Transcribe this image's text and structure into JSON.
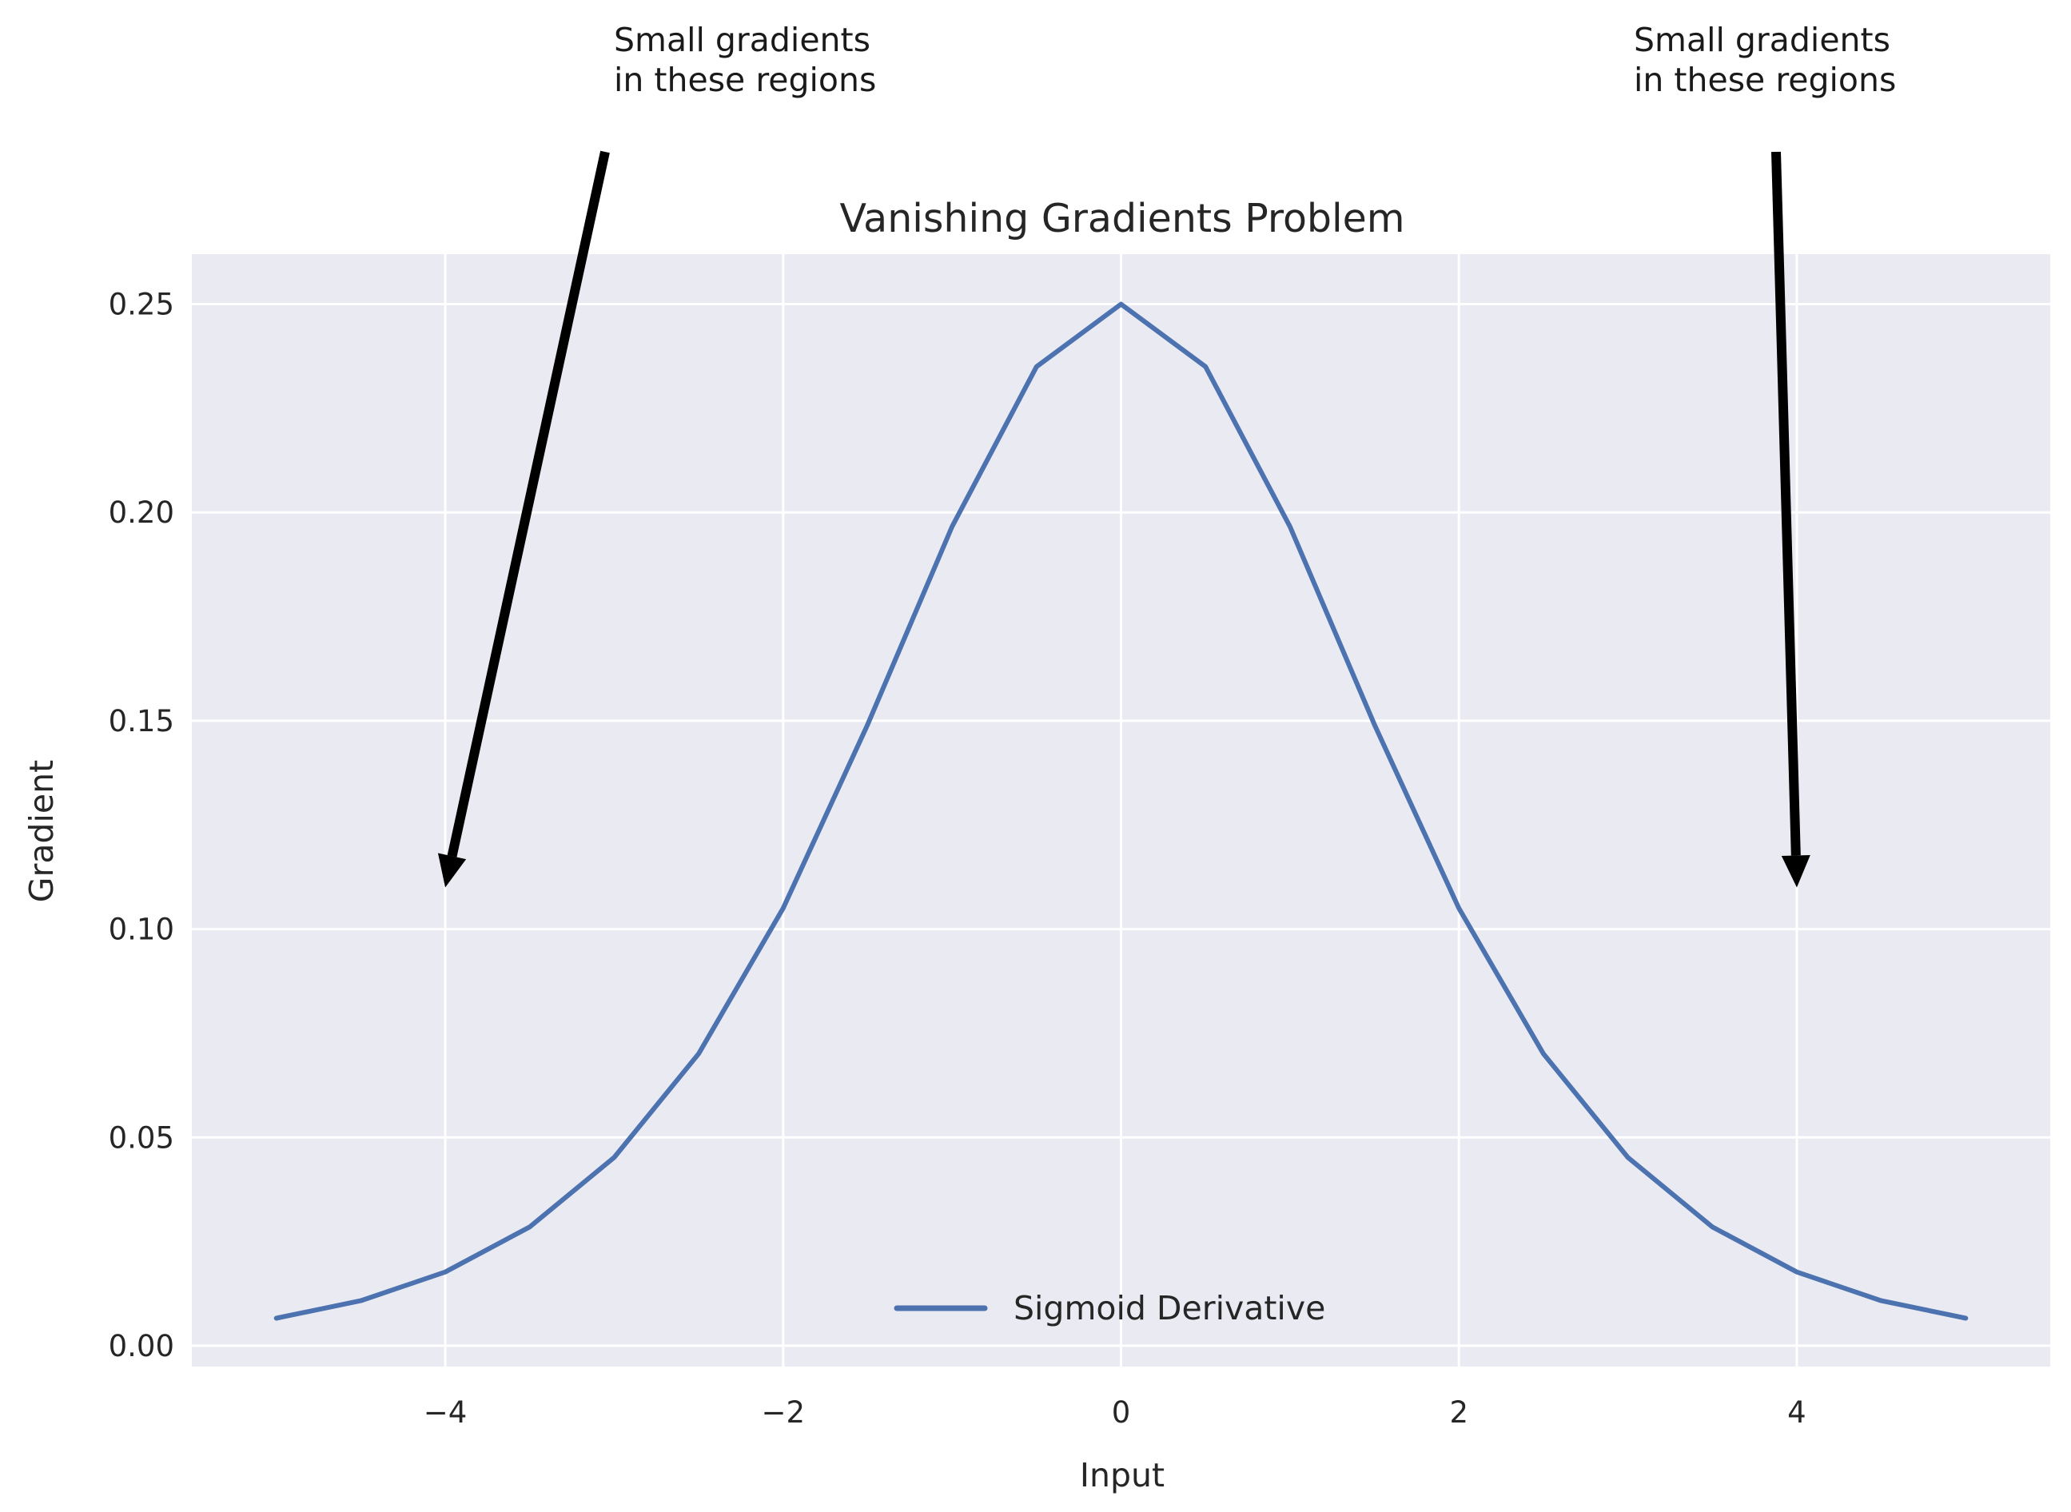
{
  "chart_data": {
    "type": "line",
    "title": "Vanishing Gradients Problem",
    "xlabel": "Input",
    "ylabel": "Gradient",
    "xlim": [
      -5.5,
      5.5
    ],
    "ylim": [
      -0.005,
      0.262
    ],
    "xticks": [
      -4,
      -2,
      0,
      2,
      4
    ],
    "xtick_labels": [
      "−4",
      "−2",
      "0",
      "2",
      "4"
    ],
    "yticks": [
      0.0,
      0.05,
      0.1,
      0.15,
      0.2,
      0.25
    ],
    "ytick_labels": [
      "0.00",
      "0.05",
      "0.10",
      "0.15",
      "0.20",
      "0.25"
    ],
    "grid": true,
    "background": "#eaeaf2",
    "legend_position": "lower center",
    "series": [
      {
        "name": "Sigmoid Derivative",
        "color": "#4c72b0",
        "x": [
          -5.0,
          -4.5,
          -4.0,
          -3.5,
          -3.0,
          -2.5,
          -2.0,
          -1.5,
          -1.0,
          -0.5,
          0.0,
          0.5,
          1.0,
          1.5,
          2.0,
          2.5,
          3.0,
          3.5,
          4.0,
          4.5,
          5.0
        ],
        "y": [
          0.0066,
          0.0108,
          0.0177,
          0.0285,
          0.0452,
          0.0701,
          0.105,
          0.1491,
          0.1966,
          0.235,
          0.25,
          0.235,
          0.1966,
          0.1491,
          0.105,
          0.0701,
          0.0452,
          0.0285,
          0.0177,
          0.0108,
          0.0066
        ]
      }
    ],
    "annotations": [
      {
        "lines": [
          "Small gradients",
          "in these regions"
        ],
        "target": [
          -4,
          0.11
        ]
      },
      {
        "lines": [
          "Small gradients",
          "in these regions"
        ],
        "target": [
          4,
          0.11
        ]
      }
    ]
  }
}
